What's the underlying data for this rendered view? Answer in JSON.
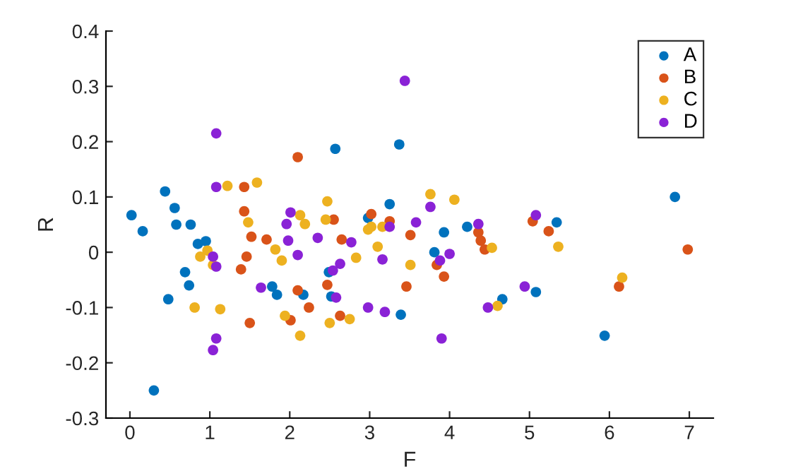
{
  "chart_data": {
    "type": "scatter",
    "xlabel": "F",
    "ylabel": "R",
    "xlim": [
      -0.3,
      7.3
    ],
    "ylim": [
      -0.3,
      0.4
    ],
    "xticks": [
      0,
      1,
      2,
      3,
      4,
      5,
      6,
      7
    ],
    "yticks": [
      -0.3,
      -0.2,
      -0.1,
      0,
      0.1,
      0.2,
      0.3,
      0.4
    ],
    "legend": "top right",
    "marker": "circle",
    "grid": false,
    "series": [
      {
        "name": "A",
        "color": "#0072bd",
        "x": [
          0.02,
          0.16,
          0.44,
          0.56,
          0.58,
          0.76,
          0.85,
          0.95,
          0.69,
          0.74,
          0.48,
          0.3,
          1.78,
          1.84,
          2.17,
          2.57,
          3.37,
          3.25,
          2.98,
          3.93,
          4.22,
          3.81,
          2.49,
          2.52,
          3.39,
          4.66,
          5.34,
          5.08,
          5.94,
          6.82
        ],
        "values": [
          0.067,
          0.038,
          0.11,
          0.08,
          0.05,
          0.05,
          0.015,
          0.02,
          -0.036,
          -0.06,
          -0.085,
          -0.25,
          -0.062,
          -0.077,
          -0.077,
          0.187,
          0.195,
          0.087,
          0.062,
          0.036,
          0.046,
          0.0,
          -0.036,
          -0.08,
          -0.113,
          -0.085,
          0.054,
          -0.072,
          -0.151,
          0.1
        ]
      },
      {
        "name": "B",
        "color": "#d95319",
        "x": [
          2.1,
          1.43,
          1.43,
          1.52,
          1.71,
          1.46,
          1.39,
          2.1,
          2.01,
          2.24,
          1.5,
          2.55,
          3.02,
          3.25,
          2.65,
          3.51,
          2.47,
          3.46,
          3.84,
          3.93,
          2.63,
          4.36,
          4.39,
          4.44,
          5.04,
          5.24,
          6.12,
          6.98
        ],
        "values": [
          0.172,
          0.118,
          0.074,
          0.028,
          0.023,
          -0.008,
          -0.031,
          -0.069,
          -0.123,
          -0.1,
          -0.128,
          0.059,
          0.069,
          0.056,
          0.023,
          0.031,
          -0.059,
          -0.062,
          -0.023,
          -0.044,
          -0.115,
          0.036,
          0.021,
          0.005,
          0.056,
          0.038,
          -0.062,
          0.005
        ]
      },
      {
        "name": "C",
        "color": "#edb120",
        "x": [
          1.22,
          1.59,
          1.48,
          2.13,
          2.19,
          1.82,
          1.9,
          0.97,
          0.88,
          1.04,
          0.81,
          1.13,
          1.94,
          2.13,
          2.47,
          2.45,
          2.98,
          3.02,
          3.16,
          3.76,
          4.06,
          3.1,
          2.83,
          3.51,
          4.53,
          2.5,
          2.75,
          4.6,
          5.36,
          6.16
        ],
        "values": [
          0.12,
          0.126,
          0.054,
          0.067,
          0.051,
          0.005,
          -0.015,
          0.003,
          -0.008,
          -0.023,
          -0.1,
          -0.103,
          -0.115,
          -0.151,
          0.092,
          0.059,
          0.041,
          0.046,
          0.046,
          0.105,
          0.095,
          0.01,
          -0.01,
          -0.023,
          0.008,
          -0.128,
          -0.121,
          -0.097,
          0.01,
          -0.046
        ]
      },
      {
        "name": "D",
        "color": "#8a22d6",
        "x": [
          1.08,
          1.08,
          2.01,
          1.96,
          1.98,
          2.1,
          1.04,
          1.08,
          1.64,
          1.08,
          1.04,
          3.44,
          3.76,
          3.58,
          3.25,
          2.35,
          2.77,
          3.16,
          2.63,
          2.54,
          3.88,
          4.0,
          2.58,
          2.98,
          3.19,
          3.9,
          4.36,
          4.48,
          5.08,
          4.94
        ],
        "values": [
          0.215,
          0.118,
          0.072,
          0.051,
          0.021,
          -0.005,
          -0.008,
          -0.026,
          -0.064,
          -0.156,
          -0.177,
          0.31,
          0.082,
          0.054,
          0.046,
          0.026,
          0.018,
          -0.013,
          -0.021,
          -0.033,
          -0.015,
          -0.003,
          -0.082,
          -0.1,
          -0.108,
          -0.156,
          0.051,
          -0.1,
          0.067,
          -0.062
        ]
      }
    ]
  }
}
